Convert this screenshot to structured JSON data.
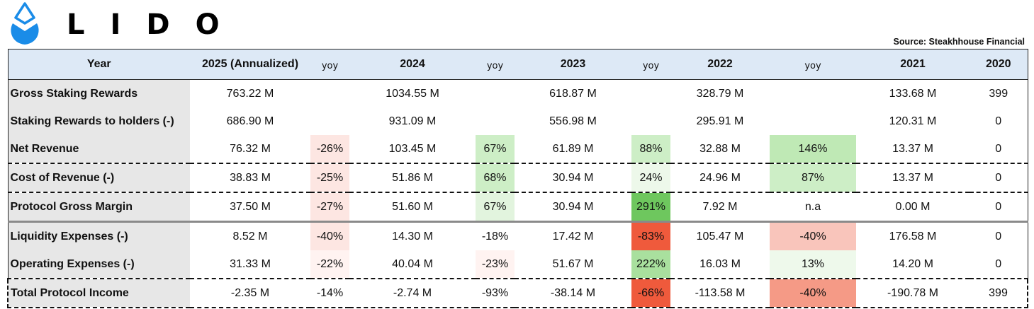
{
  "brand": {
    "name": "LIDO"
  },
  "source": "Source: Steakhhouse Financial",
  "colors": {
    "header_bg": "#dde9f6",
    "label_bg": "#e7e7e7",
    "green_light": "#e2f4de",
    "green_mid": "#c6ecbf",
    "green_strong": "#6ec75e",
    "red_light": "#fde6e2",
    "red_mid": "#f9b6aa",
    "red_strong": "#ef5a3c"
  },
  "table": {
    "headers": [
      "Year",
      "2025 (Annualized)",
      "yoy",
      "2024",
      "yoy",
      "2023",
      "yoy",
      "2022",
      "yoy",
      "2021",
      "2020"
    ],
    "rows": [
      {
        "label": "Gross Staking Rewards",
        "cells": [
          "763.22 M",
          "",
          "1034.55 M",
          "",
          "618.87 M",
          "",
          "328.79 M",
          "",
          "133.68 M",
          "399"
        ]
      },
      {
        "label": "Staking Rewards to holders (-)",
        "cells": [
          "686.90 M",
          "",
          "931.09 M",
          "",
          "556.98 M",
          "",
          "295.91 M",
          "",
          "120.31 M",
          "0"
        ]
      },
      {
        "label": "Net Revenue",
        "cells": [
          "76.32 M",
          "-26%",
          "103.45 M",
          "67%",
          "61.89 M",
          "88%",
          "32.88 M",
          "146%",
          "13.37 M",
          "0"
        ]
      },
      {
        "label": "Cost of Revenue (-)",
        "cells": [
          "38.83 M",
          "-25%",
          "51.86 M",
          "68%",
          "30.94 M",
          "24%",
          "24.96 M",
          "87%",
          "13.37 M",
          "0"
        ]
      },
      {
        "label": "Protocol Gross Margin",
        "cells": [
          "37.50 M",
          "-27%",
          "51.60 M",
          "67%",
          "30.94 M",
          "291%",
          "7.92 M",
          "n.a",
          "0.00 M",
          "0"
        ]
      },
      {
        "label": "Liquidity Expenses (-)",
        "cells": [
          "8.52 M",
          "-40%",
          "14.30 M",
          "-18%",
          "17.42 M",
          "-83%",
          "105.47 M",
          "-40%",
          "176.58 M",
          "0"
        ]
      },
      {
        "label": "Operating Expenses (-)",
        "cells": [
          "31.33 M",
          "-22%",
          "40.04 M",
          "-23%",
          "51.67 M",
          "222%",
          "16.03 M",
          "13%",
          "14.20 M",
          "0"
        ]
      },
      {
        "label": "Total Protocol Income",
        "cells": [
          "-2.35 M",
          "-14%",
          "-2.74 M",
          "-93%",
          "-38.14 M",
          "-66%",
          "-113.58 M",
          "-40%",
          "-190.78 M",
          "399"
        ]
      }
    ],
    "yoy_shading": [
      [
        null,
        null,
        null,
        null
      ],
      [
        null,
        null,
        null,
        null
      ],
      [
        "#fde6e2",
        "#cdeec6",
        "#cdeec6",
        "#bfe9b5"
      ],
      [
        "#fde6e2",
        "#cdeec6",
        "#edf8ea",
        "#cdeec6"
      ],
      [
        "#fde6e2",
        "#e2f4de",
        "#6ec75e",
        null
      ],
      [
        "#fde6e2",
        null,
        "#ef5a3c",
        "#f9c5bb"
      ],
      [
        "#fff3f1",
        "#fff3f1",
        "#a9e09e",
        "#eef9eb"
      ],
      [
        "#ffffff",
        null,
        "#ef5a3c",
        "#f59a86"
      ]
    ]
  }
}
